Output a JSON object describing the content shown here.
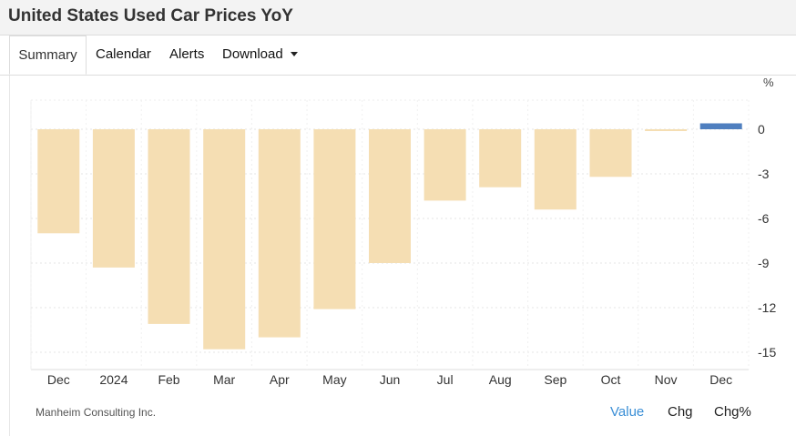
{
  "title": "United States Used Car Prices YoY",
  "tabs": [
    {
      "label": "Summary"
    },
    {
      "label": "Calendar"
    },
    {
      "label": "Alerts"
    },
    {
      "label": "Download"
    }
  ],
  "source": "Manheim Consulting Inc.",
  "view_buttons": [
    {
      "label": "Value"
    },
    {
      "label": "Chg"
    },
    {
      "label": "Chg%"
    }
  ],
  "colors": {
    "negative_bar": "#f5deb3",
    "positive_bar": "#4f7fbf",
    "active_link": "#3b8fd6"
  },
  "chart_data": {
    "type": "bar",
    "title": "",
    "unit_label": "%",
    "categories": [
      "Dec",
      "2024",
      "Feb",
      "Mar",
      "Apr",
      "May",
      "Jun",
      "Jul",
      "Aug",
      "Sep",
      "Oct",
      "Nov",
      "Dec"
    ],
    "values": [
      -7.0,
      -9.3,
      -13.1,
      -14.8,
      -14.0,
      -12.1,
      -9.0,
      -4.8,
      -3.9,
      -5.4,
      -3.2,
      -0.1,
      0.4
    ],
    "yticks": [
      0,
      -3,
      -6,
      -9,
      -12,
      -15
    ],
    "ylim": [
      -15.5,
      1.5
    ],
    "grid": true
  }
}
